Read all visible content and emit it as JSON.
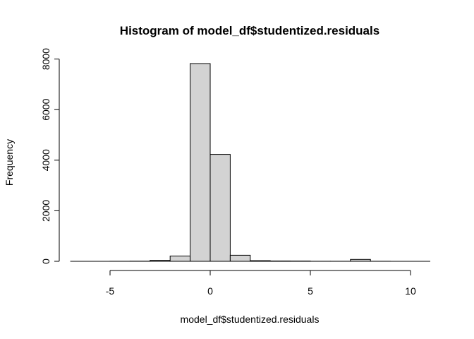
{
  "chart_data": {
    "type": "bar",
    "title": "Histogram of model_df$studentized.residuals",
    "xlabel": "model_df$studentized.residuals",
    "ylabel": "Frequency",
    "xlim": [
      -7,
      11
    ],
    "ylim": [
      0,
      8000
    ],
    "x_ticks": [
      -5,
      0,
      5,
      10
    ],
    "x_tick_labels": [
      "-5",
      "0",
      "5",
      "10"
    ],
    "y_ticks": [
      0,
      2000,
      4000,
      6000,
      8000
    ],
    "y_tick_labels": [
      "0",
      "2000",
      "4000",
      "6000",
      "8000"
    ],
    "bins": [
      {
        "from": -6,
        "to": -5,
        "count": 1
      },
      {
        "from": -5,
        "to": -4,
        "count": 2
      },
      {
        "from": -4,
        "to": -3,
        "count": 5
      },
      {
        "from": -3,
        "to": -2,
        "count": 40
      },
      {
        "from": -2,
        "to": -1,
        "count": 210
      },
      {
        "from": -1,
        "to": 0,
        "count": 7820
      },
      {
        "from": 0,
        "to": 1,
        "count": 4230
      },
      {
        "from": 1,
        "to": 2,
        "count": 240
      },
      {
        "from": 2,
        "to": 3,
        "count": 25
      },
      {
        "from": 3,
        "to": 4,
        "count": 15
      },
      {
        "from": 4,
        "to": 5,
        "count": 10
      },
      {
        "from": 5,
        "to": 6,
        "count": 2
      },
      {
        "from": 6,
        "to": 7,
        "count": 2
      },
      {
        "from": 7,
        "to": 8,
        "count": 75
      },
      {
        "from": 8,
        "to": 9,
        "count": 2
      },
      {
        "from": 9,
        "to": 10,
        "count": 1
      }
    ],
    "bar_fill": "#d3d3d3",
    "bar_stroke": "#000000",
    "grid": false
  }
}
